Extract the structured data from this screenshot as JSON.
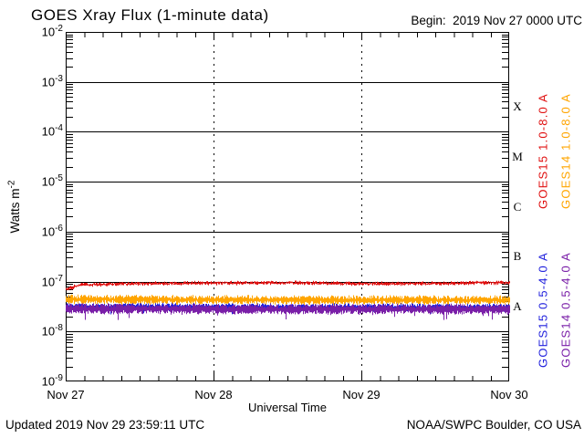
{
  "title": "GOES Xray Flux (1-minute data)",
  "begin_label": "Begin:  2019 Nov 27 0000 UTC",
  "footer": {
    "updated": "Updated 2019 Nov 29 23:59:11 UTC",
    "source": "NOAA/SWPC Boulder, CO USA"
  },
  "axes": {
    "x_title": "Universal Time",
    "y_title_text": "Watts m",
    "y_title_exp": "-2",
    "x_tick_labels": [
      "Nov 27",
      "Nov 28",
      "Nov 29",
      "Nov 30"
    ],
    "y_exponents": [
      "-2",
      "-3",
      "-4",
      "-5",
      "-6",
      "-7",
      "-8",
      "-9"
    ],
    "class_letters": [
      "X",
      "M",
      "C",
      "B",
      "A"
    ]
  },
  "legend": [
    {
      "label": "GOES15 1.0-8.0 A",
      "color": "#e01010",
      "column": 0,
      "row": 0
    },
    {
      "label": "GOES14 1.0-8.0 A",
      "color": "#ffa500",
      "column": 1,
      "row": 0
    },
    {
      "label": "GOES15 0.5-4.0 A",
      "color": "#2222dd",
      "column": 0,
      "row": 1
    },
    {
      "label": "GOES14 0.5-4.0 A",
      "color": "#7a1fa8",
      "column": 1,
      "row": 1
    }
  ],
  "chart_data": {
    "type": "line",
    "title": "GOES Xray Flux (1-minute data)",
    "xlabel": "Universal Time",
    "ylabel": "Watts m^-2",
    "x_start": "2019 Nov 27 0000 UTC",
    "x_end": "2019 Nov 30 0000 UTC",
    "x_tick_labels": [
      "Nov 27",
      "Nov 28",
      "Nov 29",
      "Nov 30"
    ],
    "y_scale": "log",
    "ylim": [
      1e-09,
      0.01
    ],
    "grid": {
      "horizontal_solid_decades": [
        -3,
        -4,
        -5,
        -6,
        -7,
        -8
      ],
      "vertical_dashed_at_days": [
        "Nov 28",
        "Nov 29"
      ],
      "x_minor_tick_hours": 3
    },
    "flare_classes": [
      {
        "letter": "X",
        "range_wm2": [
          0.0001,
          0.001
        ]
      },
      {
        "letter": "M",
        "range_wm2": [
          1e-05,
          0.0001
        ]
      },
      {
        "letter": "C",
        "range_wm2": [
          1e-06,
          1e-05
        ]
      },
      {
        "letter": "B",
        "range_wm2": [
          1e-07,
          1e-06
        ]
      },
      {
        "letter": "A",
        "range_wm2": [
          1e-08,
          1e-07
        ]
      }
    ],
    "series": [
      {
        "name": "GOES15 1.0-8.0 A",
        "color": "#e01010",
        "approx_level_wm2": 9e-08,
        "x_unit": "fraction_of_range",
        "band_log10": 0.022,
        "spike_p": 0,
        "spike_len": 0,
        "points_log10": [
          [
            0,
            -7.16
          ],
          [
            0.03,
            -7.07
          ],
          [
            0.1,
            -7.05
          ],
          [
            0.3,
            -7.03
          ],
          [
            0.5,
            -7.025
          ],
          [
            0.68,
            -7.045
          ],
          [
            0.85,
            -7.035
          ],
          [
            1,
            -7.02
          ]
        ]
      },
      {
        "name": "GOES14 1.0-8.0 A",
        "color": "#ffa500",
        "approx_level_wm2": 4.3e-08,
        "x_unit": "fraction_of_range",
        "band_log10": 0.058,
        "spike_p": 0.01,
        "spike_len": 3,
        "points_log10": [
          [
            0,
            -7.355
          ],
          [
            0.3,
            -7.365
          ],
          [
            0.6,
            -7.37
          ],
          [
            1,
            -7.37
          ]
        ]
      },
      {
        "name": "GOES15 0.5-4.0 A",
        "color": "#2222dd",
        "approx_level_wm2": 3e-08,
        "x_unit": "fraction_of_range",
        "band_log10": 0.05,
        "spike_p": 0.02,
        "spike_len": 4,
        "points_log10": [
          [
            0,
            -7.51
          ],
          [
            0.5,
            -7.52
          ],
          [
            1,
            -7.52
          ]
        ]
      },
      {
        "name": "GOES14 0.5-4.0 A",
        "color": "#7a1fa8",
        "approx_level_wm2": 2.8e-08,
        "x_unit": "fraction_of_range",
        "band_log10": 0.066,
        "spike_p": 0.035,
        "spike_len": 6,
        "points_log10": [
          [
            0,
            -7.545
          ],
          [
            0.5,
            -7.555
          ],
          [
            1,
            -7.555
          ]
        ]
      }
    ],
    "draw_order": [
      1,
      2,
      3,
      0
    ],
    "legend_position": "right-rotated"
  }
}
